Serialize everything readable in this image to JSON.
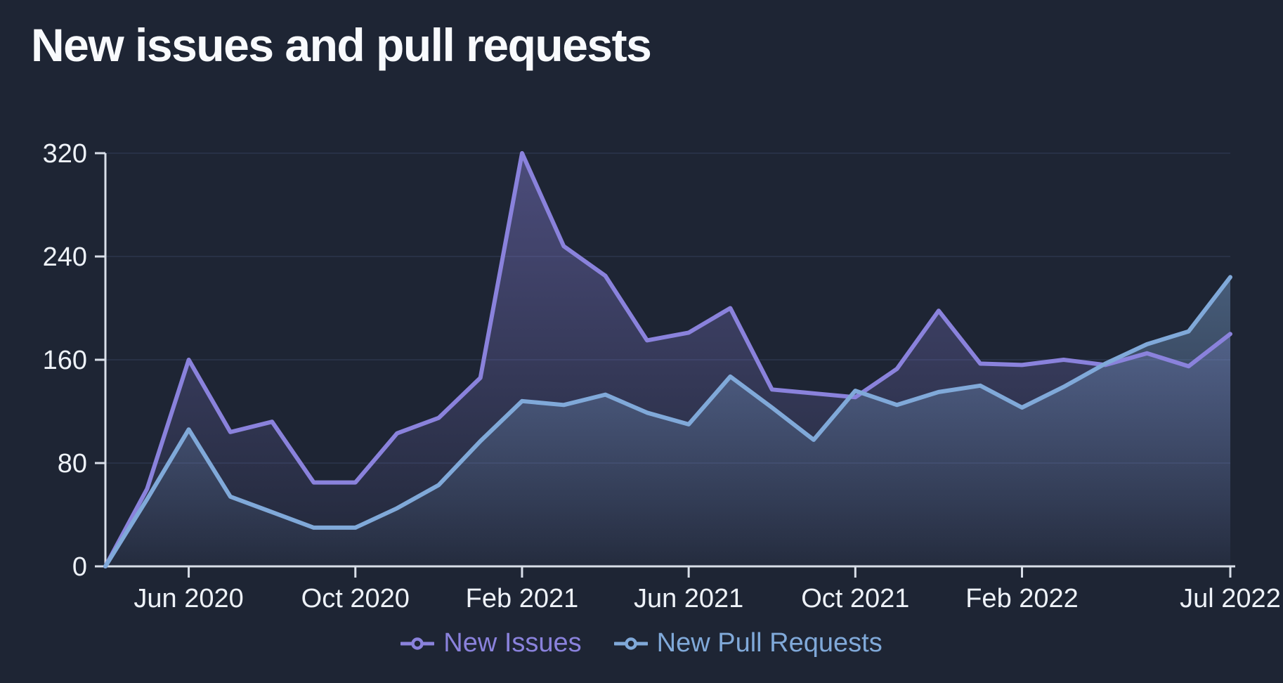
{
  "title": "New issues and pull requests",
  "colors": {
    "background": "#1e2534",
    "grid": "#283146",
    "axis": "#d9dfe9",
    "tick_label": "#eef2f8",
    "title": "#f8fafd",
    "issues_accent": "#8a82dc",
    "pull_requests_accent": "#80a9d9"
  },
  "legend": {
    "items": [
      {
        "label": "New Issues",
        "color": "#8a82dc"
      },
      {
        "label": "New Pull Requests",
        "color": "#80a9d9"
      }
    ]
  },
  "chart_data": {
    "type": "line",
    "area": true,
    "title": "New issues and pull requests",
    "xlabel": "",
    "ylabel": "",
    "grid": true,
    "legend_position": "bottom",
    "ylim": [
      0,
      320
    ],
    "y_ticks": [
      0,
      80,
      160,
      240,
      320
    ],
    "x": [
      "Apr 2020",
      "May 2020",
      "Jun 2020",
      "Jul 2020",
      "Aug 2020",
      "Sep 2020",
      "Oct 2020",
      "Nov 2020",
      "Dec 2020",
      "Jan 2021",
      "Feb 2021",
      "Mar 2021",
      "Apr 2021",
      "May 2021",
      "Jun 2021",
      "Jul 2021",
      "Aug 2021",
      "Sep 2021",
      "Oct 2021",
      "Nov 2021",
      "Dec 2021",
      "Jan 2022",
      "Feb 2022",
      "Mar 2022",
      "Apr 2022",
      "May 2022",
      "Jun 2022",
      "Jul 2022"
    ],
    "x_tick_labels": [
      {
        "index": 2,
        "label": "Jun 2020"
      },
      {
        "index": 6,
        "label": "Oct 2020"
      },
      {
        "index": 10,
        "label": "Feb 2021"
      },
      {
        "index": 14,
        "label": "Jun 2021"
      },
      {
        "index": 18,
        "label": "Oct 2021"
      },
      {
        "index": 22,
        "label": "Feb 2022"
      },
      {
        "index": 27,
        "label": "Jul 2022"
      }
    ],
    "series": [
      {
        "name": "New Issues",
        "color": "#8a82dc",
        "values": [
          0,
          60,
          160,
          104,
          112,
          65,
          65,
          103,
          115,
          146,
          320,
          248,
          225,
          175,
          181,
          200,
          137,
          134,
          131,
          153,
          198,
          157,
          156,
          160,
          156,
          165,
          155,
          180
        ]
      },
      {
        "name": "New Pull Requests",
        "color": "#80a9d9",
        "values": [
          0,
          52,
          106,
          54,
          42,
          30,
          30,
          45,
          63,
          97,
          128,
          125,
          133,
          119,
          110,
          147,
          123,
          98,
          136,
          125,
          135,
          140,
          123,
          139,
          157,
          172,
          182,
          224
        ]
      }
    ]
  }
}
